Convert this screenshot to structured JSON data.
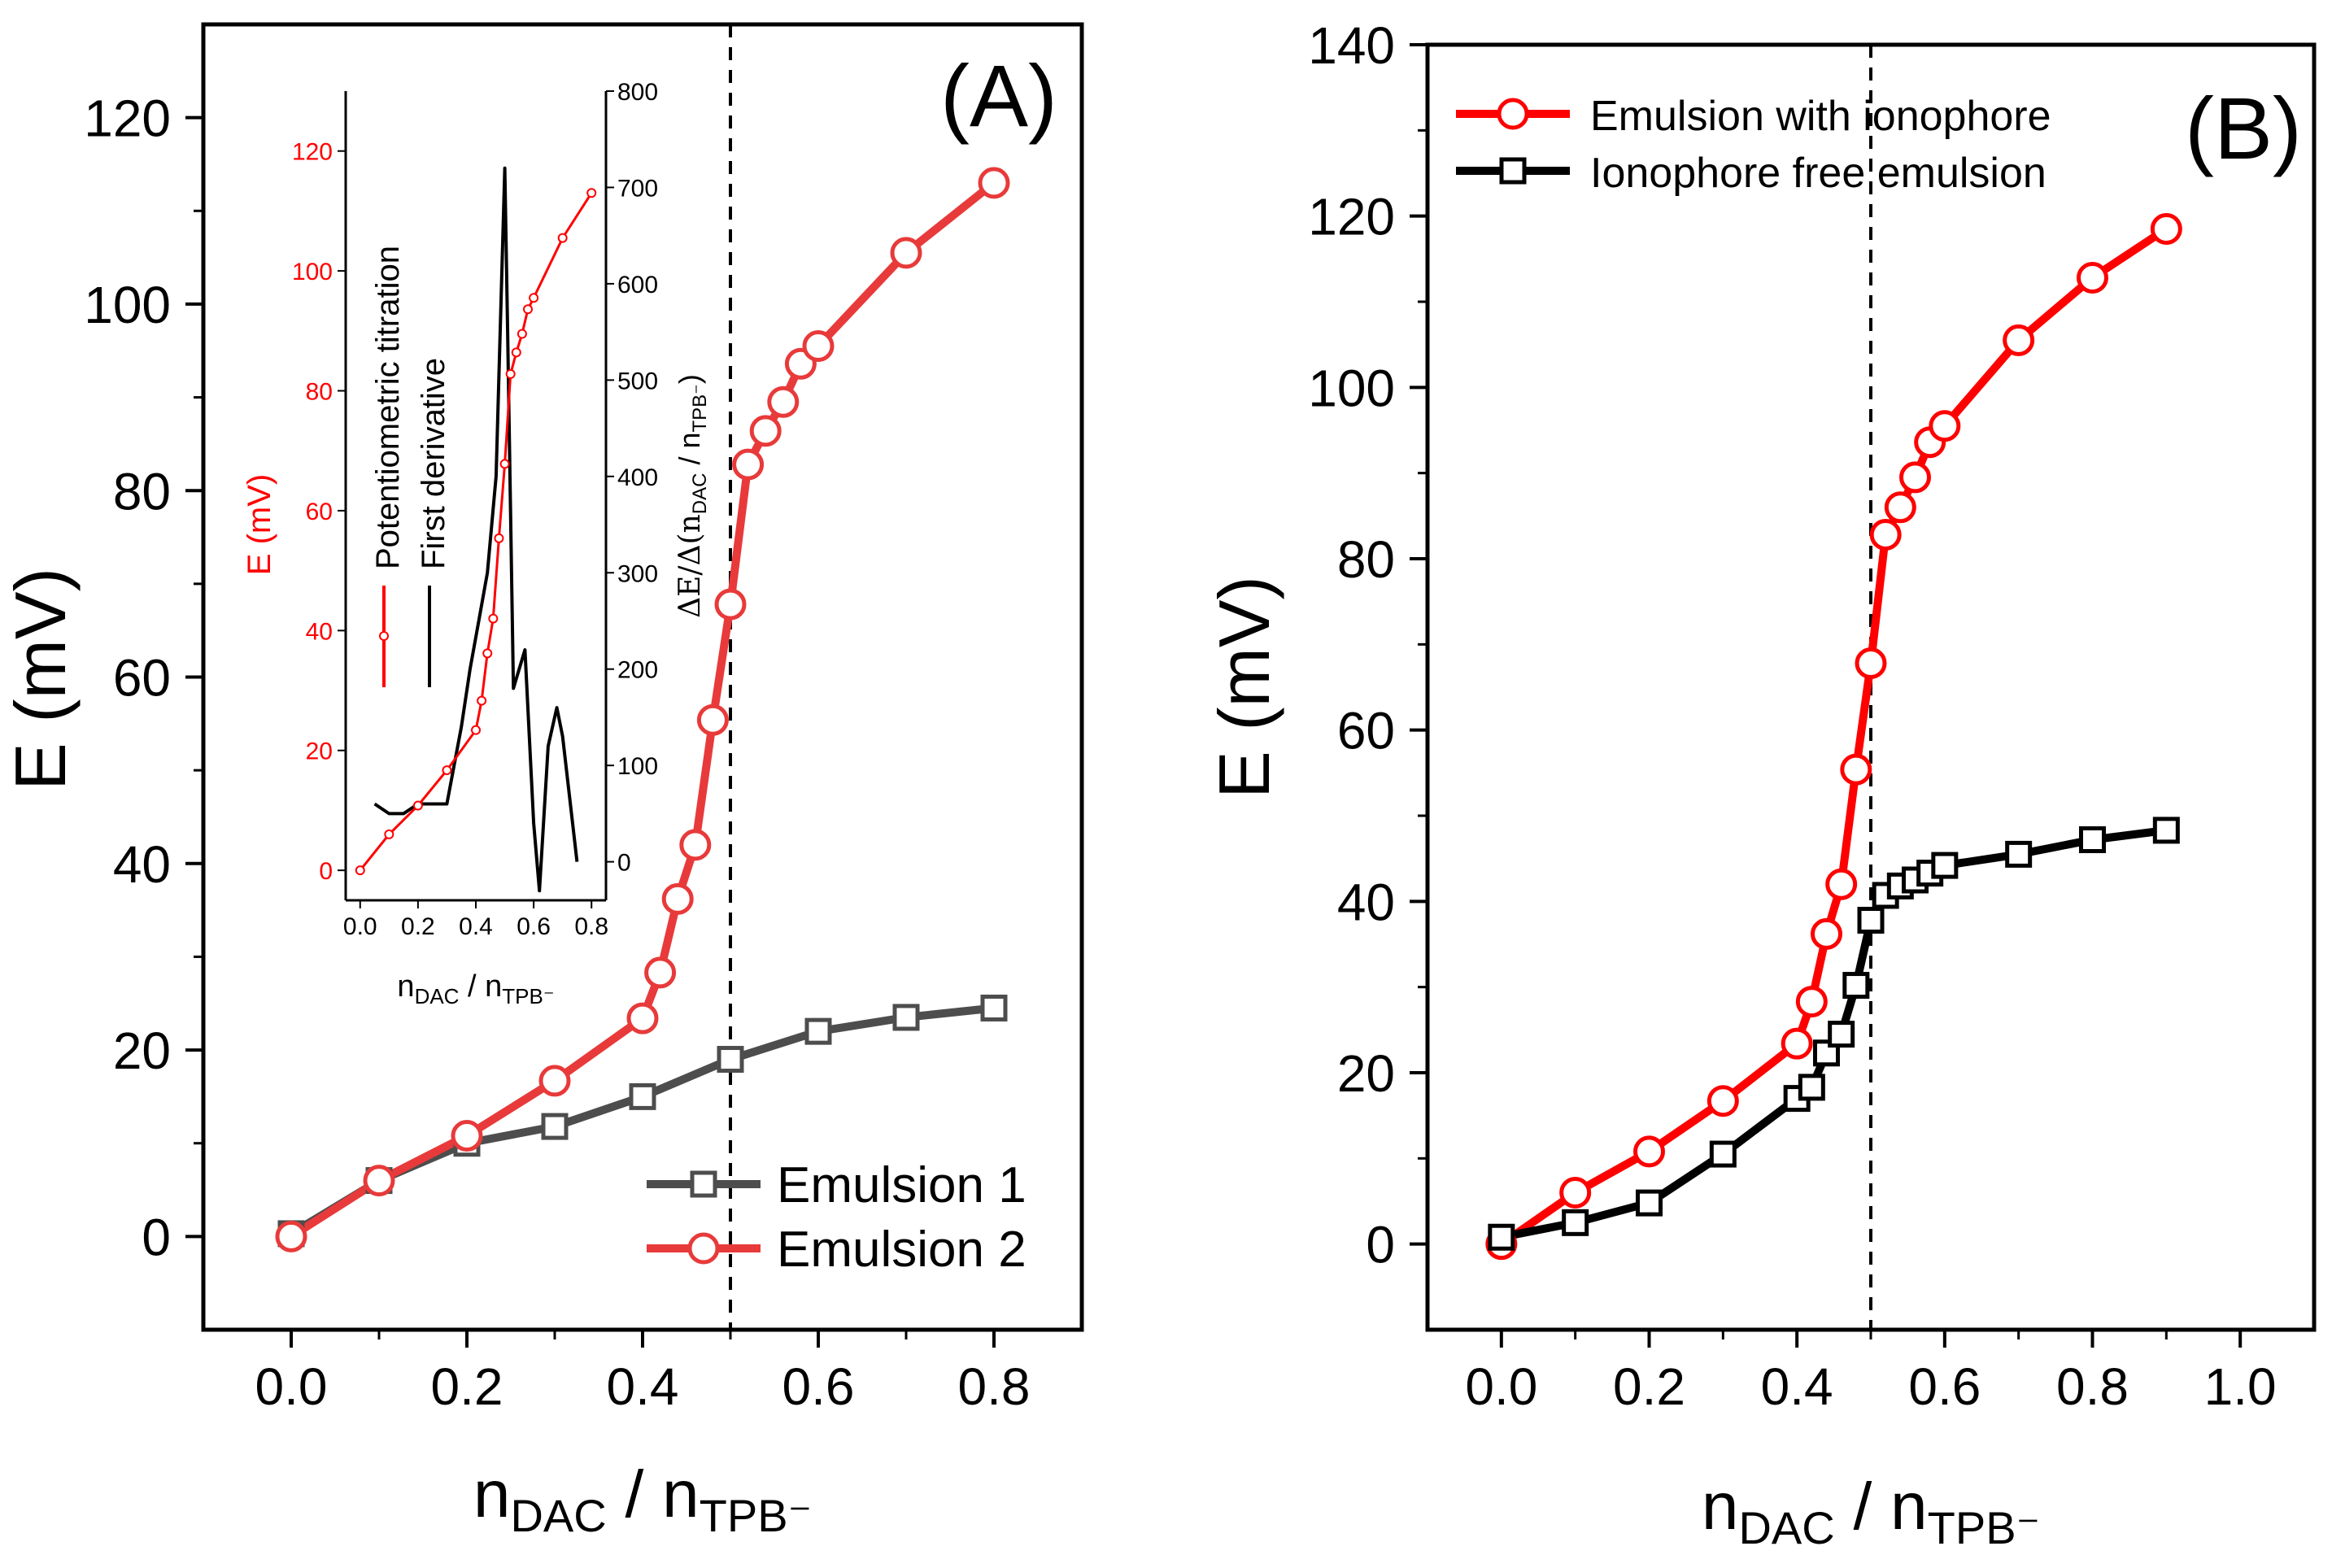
{
  "chart_data": [
    {
      "panel": "(A)",
      "type": "line",
      "xlabel_main": "n",
      "xlabel_sub1": "DAC",
      "xlabel_mid": " / n",
      "xlabel_sub2": "TPB⁻",
      "ylabel": "E (mV)",
      "xlim": [
        -0.1,
        0.9
      ],
      "ylim": [
        -10,
        130
      ],
      "xticks": [
        "0.0",
        "0.2",
        "0.4",
        "0.6",
        "0.8"
      ],
      "xtick_values": [
        0.0,
        0.2,
        0.4,
        0.6,
        0.8
      ],
      "yticks": [
        "0",
        "20",
        "40",
        "60",
        "80",
        "100",
        "120"
      ],
      "ytick_values": [
        0,
        20,
        40,
        60,
        80,
        100,
        120
      ],
      "vline_x": 0.5,
      "legend_position": "bottom-right",
      "series": [
        {
          "name": "Emulsion 1",
          "color": "#4d4d4d",
          "marker": "square",
          "x": [
            0.0,
            0.1,
            0.2,
            0.3,
            0.4,
            0.5,
            0.6,
            0.7,
            0.8
          ],
          "y": [
            0.3,
            6.0,
            10.0,
            11.8,
            15.0,
            19.0,
            22.0,
            23.5,
            24.5
          ]
        },
        {
          "name": "Emulsion 2",
          "color": "#e83a3a",
          "marker": "circle",
          "x": [
            0.0,
            0.1,
            0.2,
            0.3,
            0.4,
            0.42,
            0.44,
            0.46,
            0.48,
            0.5,
            0.52,
            0.54,
            0.56,
            0.58,
            0.6,
            0.7,
            0.8
          ],
          "y": [
            0.0,
            6.0,
            10.8,
            16.7,
            23.4,
            28.3,
            36.2,
            42.0,
            55.4,
            67.8,
            82.8,
            86.4,
            89.5,
            93.6,
            95.5,
            105.5,
            113.0
          ]
        }
      ],
      "inset": {
        "type": "line",
        "xlabel_main": "n",
        "xlabel_sub1": "DAC",
        "xlabel_mid": " / n",
        "xlabel_sub2": "TPB⁻",
        "ylabel_left": "E (mV)",
        "ylabel_right_prefix": "ΔE/Δ(n",
        "ylabel_right_sub1": "DAC",
        "ylabel_right_mid": " / n",
        "ylabel_right_sub2": "TPB⁻",
        "ylabel_right_suffix": ")",
        "xlim": [
          -0.05,
          0.85
        ],
        "ylim_left": [
          -5,
          130
        ],
        "ylim_right": [
          -40,
          800
        ],
        "xticks": [
          "0.0",
          "0.2",
          "0.4",
          "0.6",
          "0.8"
        ],
        "xtick_values": [
          0.0,
          0.2,
          0.4,
          0.6,
          0.8
        ],
        "yticks_left": [
          "0",
          "20",
          "40",
          "60",
          "80",
          "100",
          "120"
        ],
        "ytick_values_left": [
          0,
          20,
          40,
          60,
          80,
          100,
          120
        ],
        "yticks_right": [
          "0",
          "100",
          "200",
          "300",
          "400",
          "500",
          "600",
          "700",
          "800"
        ],
        "ytick_values_right": [
          0,
          100,
          200,
          300,
          400,
          500,
          600,
          700,
          800
        ],
        "legend": [
          "Potentiometric titration",
          "First derivative"
        ],
        "series": [
          {
            "name": "Potentiometric titration",
            "color": "#ff0000",
            "axis": "left",
            "x": [
              0.0,
              0.1,
              0.2,
              0.3,
              0.4,
              0.42,
              0.44,
              0.46,
              0.48,
              0.5,
              0.52,
              0.54,
              0.56,
              0.58,
              0.6,
              0.7,
              0.8
            ],
            "y": [
              0.0,
              6.0,
              10.8,
              16.7,
              23.4,
              28.3,
              36.2,
              42.0,
              55.4,
              67.8,
              82.8,
              86.4,
              89.5,
              93.6,
              95.5,
              105.5,
              113.0
            ]
          },
          {
            "name": "First derivative",
            "color": "#000000",
            "axis": "right",
            "x": [
              0.05,
              0.1,
              0.15,
              0.2,
              0.25,
              0.3,
              0.35,
              0.38,
              0.41,
              0.44,
              0.47,
              0.5,
              0.51,
              0.53,
              0.55,
              0.57,
              0.6,
              0.62,
              0.65,
              0.68,
              0.7,
              0.75
            ],
            "y": [
              60,
              50,
              50,
              60,
              60,
              60,
              140,
              200,
              250,
              300,
              400,
              720,
              550,
              180,
              200,
              220,
              40,
              -30,
              120,
              160,
              130,
              0
            ]
          }
        ]
      }
    },
    {
      "panel": "(B)",
      "type": "line",
      "xlabel_main": "n",
      "xlabel_sub1": "DAC",
      "xlabel_mid": " / n",
      "xlabel_sub2": "TPB⁻",
      "ylabel": "E (mV)",
      "xlim": [
        -0.1,
        1.1
      ],
      "ylim": [
        -10,
        140
      ],
      "xticks": [
        "0.0",
        "0.2",
        "0.4",
        "0.6",
        "0.8",
        "1.0"
      ],
      "xtick_values": [
        0.0,
        0.2,
        0.4,
        0.6,
        0.8,
        1.0
      ],
      "yticks": [
        "0",
        "20",
        "40",
        "60",
        "80",
        "100",
        "120",
        "140"
      ],
      "ytick_values": [
        0,
        20,
        40,
        60,
        80,
        100,
        120,
        140
      ],
      "vline_x": 0.5,
      "legend_position": "top-left",
      "series": [
        {
          "name": "Emulsion with ionophore",
          "color": "#ff0000",
          "marker": "circle",
          "x": [
            0.0,
            0.1,
            0.2,
            0.3,
            0.4,
            0.42,
            0.44,
            0.46,
            0.48,
            0.5,
            0.52,
            0.54,
            0.56,
            0.58,
            0.6,
            0.7,
            0.8,
            0.9
          ],
          "y": [
            0.0,
            6.0,
            10.8,
            16.7,
            23.4,
            28.3,
            36.2,
            42.0,
            55.4,
            67.8,
            82.8,
            86.0,
            89.5,
            93.6,
            95.5,
            105.5,
            112.8,
            118.5
          ]
        },
        {
          "name": "Ionophore free emulsion",
          "color": "#000000",
          "marker": "square",
          "x": [
            0.0,
            0.1,
            0.2,
            0.3,
            0.4,
            0.42,
            0.44,
            0.46,
            0.48,
            0.5,
            0.52,
            0.54,
            0.56,
            0.58,
            0.6,
            0.7,
            0.8,
            0.9
          ],
          "y": [
            0.8,
            2.5,
            4.8,
            10.5,
            17.0,
            18.3,
            22.3,
            24.5,
            30.2,
            37.8,
            40.7,
            41.8,
            42.5,
            43.3,
            44.2,
            45.5,
            47.2,
            48.3
          ]
        }
      ]
    }
  ]
}
